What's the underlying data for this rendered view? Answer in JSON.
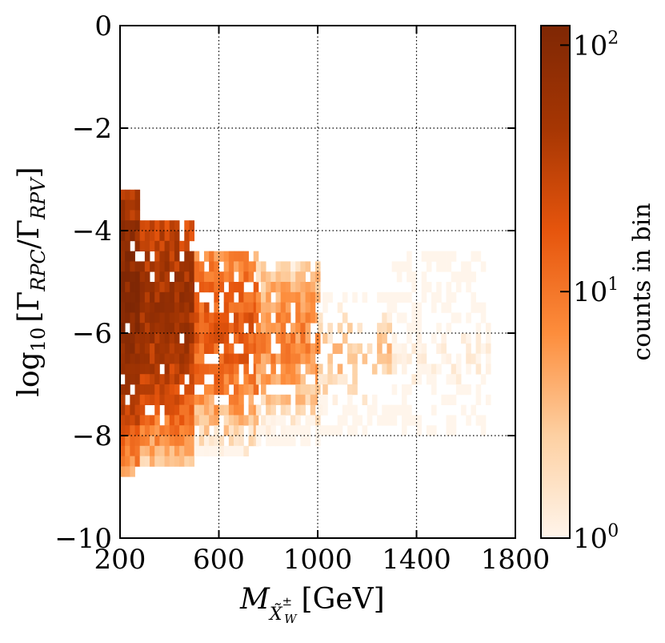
{
  "chart_data": {
    "type": "heatmap",
    "title": "",
    "xlabel": "M_{X̃W±} [GeV]",
    "xlabel_parts": {
      "main": "M",
      "sub": "X̃",
      "sup_sub": "±",
      "sub_sub": "W",
      "unit": "[GeV]"
    },
    "ylabel": "log10 [ΓRPC/ΓRPV]",
    "ylabel_parts": {
      "log": "log",
      "log_sub": "10",
      "open": "[Γ",
      "rpc": "RPC",
      "slash": "/Γ",
      "rpv": "RPV",
      "close": "]"
    },
    "xlim": [
      200,
      1800
    ],
    "ylim": [
      -10,
      0
    ],
    "xticks": [
      200,
      600,
      1000,
      1400,
      1800
    ],
    "xtick_labels": [
      "200",
      "600",
      "1000",
      "1400",
      "1800"
    ],
    "yticks": [
      0,
      -2,
      -4,
      -6,
      -8,
      -10
    ],
    "ytick_labels": [
      "0",
      "−2",
      "−4",
      "−6",
      "−8",
      "−10"
    ],
    "grid_x": [
      600,
      1000,
      1400
    ],
    "grid_y": [
      -2,
      -4,
      -6,
      -8
    ],
    "bin_width_gev": 20,
    "bin_height": 0.2,
    "colorbar": {
      "label": "counts in bin",
      "scale": "log",
      "min": 1,
      "max": 120,
      "ticks": [
        {
          "value": 1,
          "base": "10",
          "exp": "0"
        },
        {
          "value": 10,
          "base": "10",
          "exp": "1"
        },
        {
          "value": 100,
          "base": "10",
          "exp": "2"
        }
      ],
      "colors": [
        "#fff5eb",
        "#fdd0a2",
        "#fd8d3c",
        "#e6550d",
        "#a63603",
        "#7f2704"
      ]
    },
    "density_regions": [
      {
        "mass_range": [
          200,
          280
        ],
        "y_range": [
          -3.2,
          -8.8
        ],
        "peak_y": -5.2,
        "peak_counts": 110
      },
      {
        "mass_range": [
          280,
          500
        ],
        "y_range": [
          -3.8,
          -8.6
        ],
        "peak_y": -5.4,
        "peak_counts": 60
      },
      {
        "mass_range": [
          500,
          750
        ],
        "y_range": [
          -4.4,
          -8.4
        ],
        "peak_y": -5.8,
        "peak_counts": 18
      },
      {
        "mass_range": [
          750,
          1000
        ],
        "y_range": [
          -4.6,
          -8.2
        ],
        "peak_y": -6.0,
        "peak_counts": 8
      },
      {
        "mass_range": [
          1000,
          1300
        ],
        "y_range": [
          -5.2,
          -8.0
        ],
        "peak_y": -6.4,
        "peak_counts": 3
      },
      {
        "mass_range": [
          1300,
          1700
        ],
        "y_range": [
          -4.4,
          -8.0
        ],
        "peak_y": -6.4,
        "peak_counts": 1
      }
    ]
  }
}
